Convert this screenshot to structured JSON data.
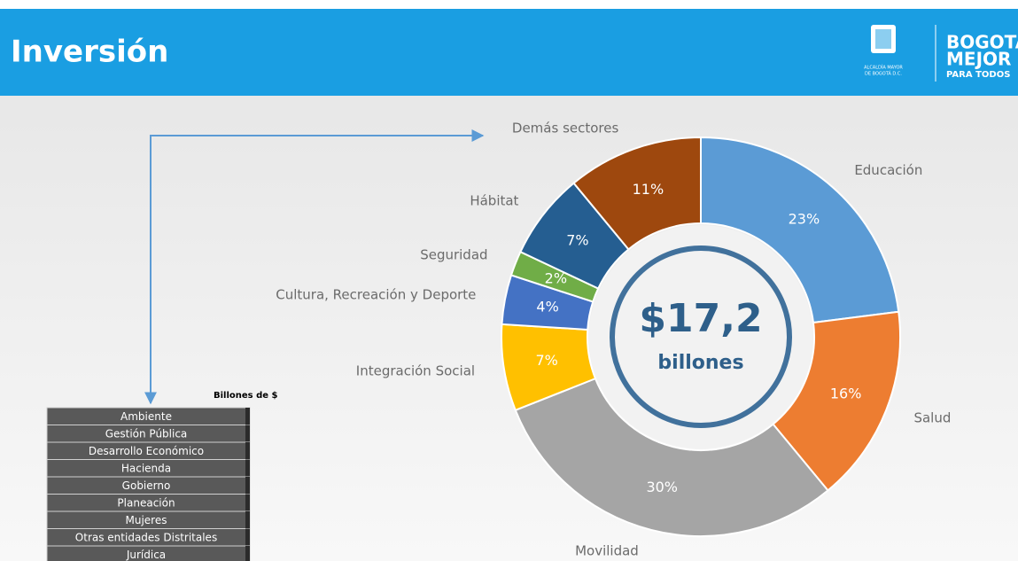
{
  "header": {
    "title": "Inversión",
    "logo_caption": [
      "ALCALDÍA MAYOR",
      "DE BOGOTÁ D.C."
    ],
    "brand": [
      "BOGOTÁ",
      "MEJOR",
      "PARA TODOS"
    ]
  },
  "chart_data": {
    "type": "pie",
    "donut": true,
    "center_value": "$17,2",
    "center_unit": "billones",
    "categories": [
      "Educación",
      "Salud",
      "Movilidad",
      "Integración Social",
      "Cultura, Recreación y Deporte",
      "Seguridad",
      "Hábitat",
      "Demás sectores"
    ],
    "values": [
      23,
      16,
      30,
      7,
      4,
      2,
      7,
      11
    ],
    "value_labels": [
      "23%",
      "16%",
      "30%",
      "7%",
      "4%",
      "2%",
      "7%",
      "11%"
    ],
    "colors": [
      "#5b9bd5",
      "#ed7d31",
      "#a5a5a5",
      "#ffc000",
      "#4472c4",
      "#70ad47",
      "#255e91",
      "#9e480e"
    ]
  },
  "table": {
    "caption": "Billones de $",
    "rows": [
      "Ambiente",
      "Gestión Pública",
      "Desarrollo Económico",
      "Hacienda",
      "Gobierno",
      "Planeación",
      "Mujeres",
      "Otras entidades Distritales",
      "Jurídica"
    ]
  }
}
